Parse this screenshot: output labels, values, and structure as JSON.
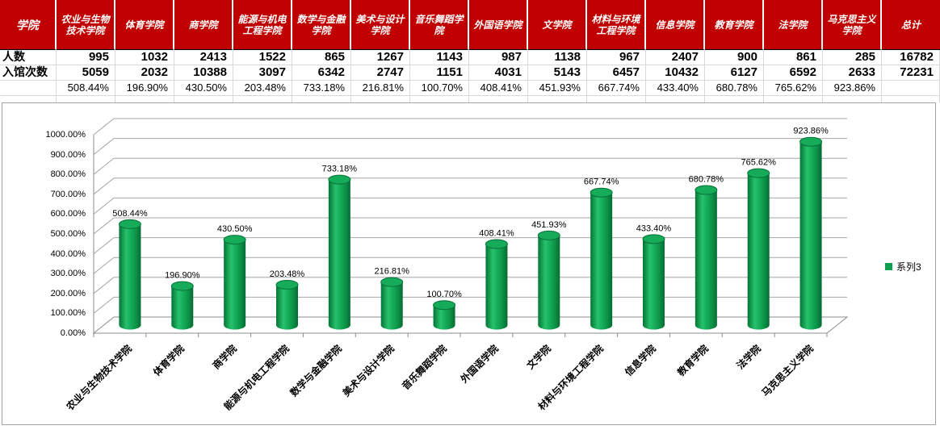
{
  "table": {
    "corner_label": "学院",
    "row_labels": [
      "人数",
      "入馆次数",
      ""
    ],
    "header_bg": "#c00000",
    "header_text_color": "#ffffff",
    "columns": [
      {
        "name": "农业与生物技术学院",
        "people": "995",
        "visits": "5059",
        "ratio": "508.44%"
      },
      {
        "name": "体育学院",
        "people": "1032",
        "visits": "2032",
        "ratio": "196.90%"
      },
      {
        "name": "商学院",
        "people": "2413",
        "visits": "10388",
        "ratio": "430.50%"
      },
      {
        "name": "能源与机电工程学院",
        "people": "1522",
        "visits": "3097",
        "ratio": "203.48%"
      },
      {
        "name": "数学与金融学院",
        "people": "865",
        "visits": "6342",
        "ratio": "733.18%"
      },
      {
        "name": "美术与设计学院",
        "people": "1267",
        "visits": "2747",
        "ratio": "216.81%"
      },
      {
        "name": "音乐舞蹈学院",
        "people": "1143",
        "visits": "1151",
        "ratio": "100.70%"
      },
      {
        "name": "外国语学院",
        "people": "987",
        "visits": "4031",
        "ratio": "408.41%"
      },
      {
        "name": "文学院",
        "people": "1138",
        "visits": "5143",
        "ratio": "451.93%"
      },
      {
        "name": "材料与环境工程学院",
        "people": "967",
        "visits": "6457",
        "ratio": "667.74%"
      },
      {
        "name": "信息学院",
        "people": "2407",
        "visits": "10432",
        "ratio": "433.40%"
      },
      {
        "name": "教育学院",
        "people": "900",
        "visits": "6127",
        "ratio": "680.78%"
      },
      {
        "name": "法学院",
        "people": "861",
        "visits": "6592",
        "ratio": "765.62%"
      },
      {
        "name": "马克思主义学院",
        "people": "285",
        "visits": "2633",
        "ratio": "923.86%"
      },
      {
        "name": "总计",
        "people": "16782",
        "visits": "72231",
        "ratio": ""
      }
    ]
  },
  "chart_data": {
    "type": "bar",
    "subtype": "3d-cylinder",
    "title": "",
    "xlabel": "",
    "ylabel": "",
    "categories": [
      "农业与生物技术学院",
      "体育学院",
      "商学院",
      "能源与机电工程学院",
      "数学与金融学院",
      "美术与设计学院",
      "音乐舞蹈学院",
      "外国语学院",
      "文学院",
      "材料与环境工程学院",
      "信息学院",
      "教育学院",
      "法学院",
      "马克思主义学院"
    ],
    "series": [
      {
        "name": "系列3",
        "values": [
          508.44,
          196.9,
          430.5,
          203.48,
          733.18,
          216.81,
          100.7,
          408.41,
          451.93,
          667.74,
          433.4,
          680.78,
          765.62,
          923.86
        ]
      }
    ],
    "value_labels": [
      "508.44%",
      "196.90%",
      "430.50%",
      "203.48%",
      "733.18%",
      "216.81%",
      "100.70%",
      "408.41%",
      "451.93%",
      "667.74%",
      "433.40%",
      "680.78%",
      "765.62%",
      "923.86%"
    ],
    "ytick_labels": [
      "0.00%",
      "100.00%",
      "200.00%",
      "300.00%",
      "400.00%",
      "500.00%",
      "600.00%",
      "700.00%",
      "800.00%",
      "900.00%",
      "1000.00%"
    ],
    "ylim": [
      0,
      1000
    ],
    "ytick_step": 100,
    "grid": true,
    "legend_position": "right",
    "bar_color": "#0ca04e",
    "bar_color_dark": "#056b33",
    "bar_color_light": "#28c16d",
    "gridline_color": "#a6a6a6",
    "axis_color": "#8c8c8c"
  }
}
